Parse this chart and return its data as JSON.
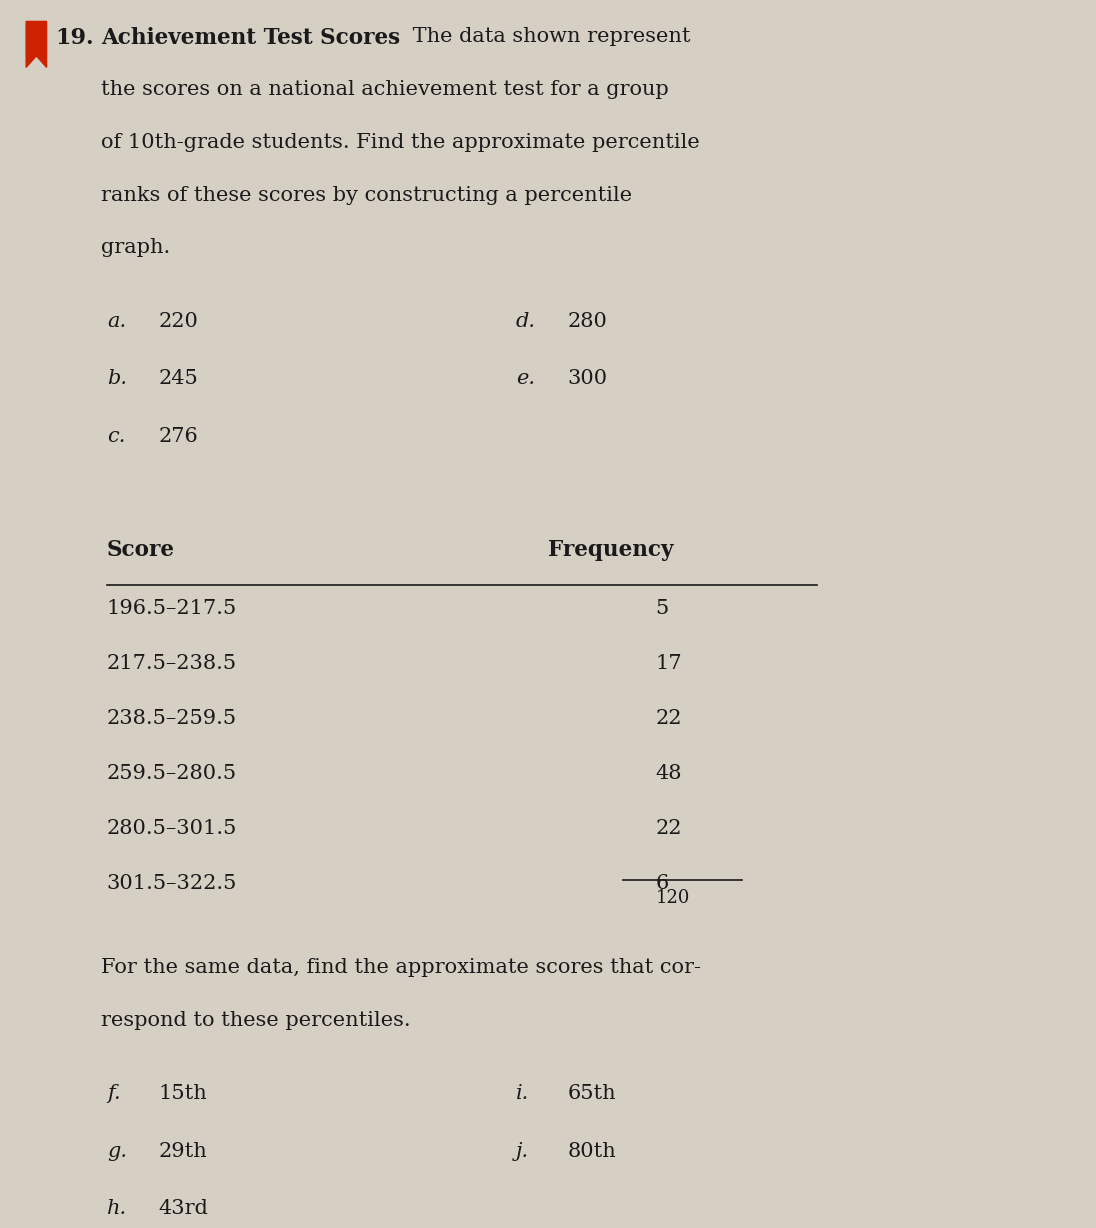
{
  "bg_color": "#d6cfc4",
  "text_color": "#1a1a1a",
  "title_number": "19.",
  "title_bold": "Achievement Test Scores",
  "title_rest_line1": " The data shown represent",
  "intro_lines": [
    "the scores on a national achievement test for a group",
    "of 10th-grade students. Find the approximate percentile",
    "ranks of these scores by constructing a percentile",
    "graph."
  ],
  "items_left": [
    [
      "a.",
      "220"
    ],
    [
      "b.",
      "245"
    ],
    [
      "c.",
      "276"
    ]
  ],
  "items_right": [
    [
      "d.",
      "280"
    ],
    [
      "e.",
      "300"
    ]
  ],
  "table_header": [
    "Score",
    "Frequency"
  ],
  "table_rows": [
    [
      "196.5–217.5",
      "5"
    ],
    [
      "217.5–238.5",
      "17"
    ],
    [
      "238.5–259.5",
      "22"
    ],
    [
      "259.5–280.5",
      "48"
    ],
    [
      "280.5–301.5",
      "22"
    ],
    [
      "301.5–322.5",
      "6"
    ]
  ],
  "table_total": "120",
  "second_para_lines": [
    "For the same data, find the approximate scores that cor-",
    "respond to these percentiles."
  ],
  "items2_left": [
    [
      "f.",
      "15th"
    ],
    [
      "g.",
      "29th"
    ],
    [
      "h.",
      "43rd"
    ]
  ],
  "items2_right": [
    [
      "i.",
      "65th"
    ],
    [
      "j.",
      "80th"
    ]
  ],
  "red_mark_color": "#cc2200"
}
